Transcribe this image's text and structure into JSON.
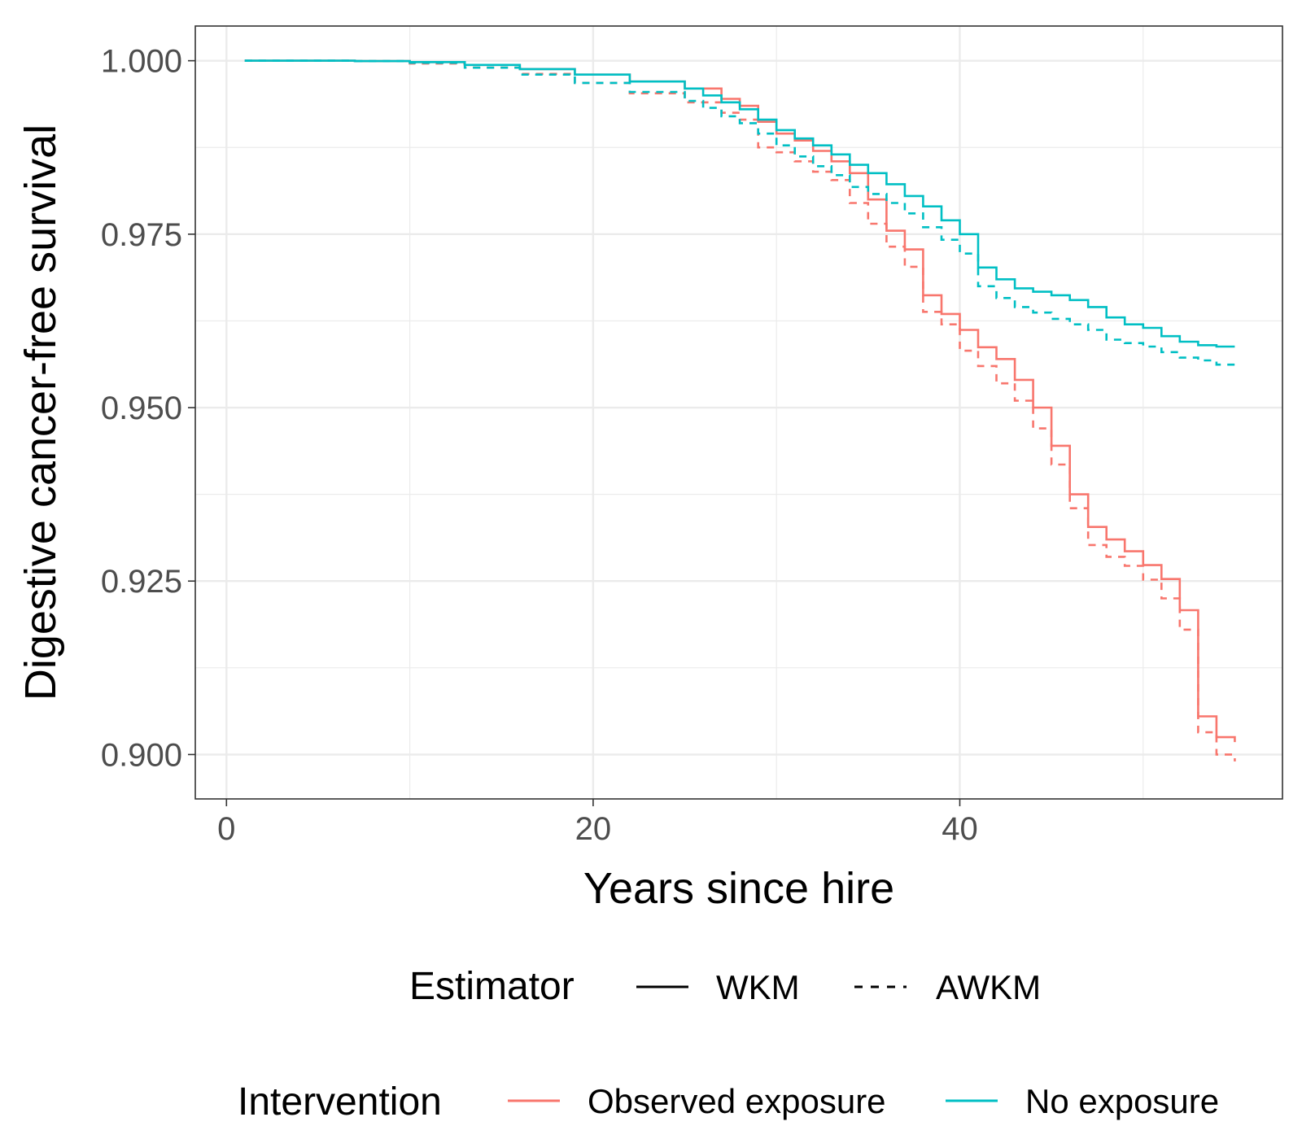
{
  "chart_data": {
    "type": "line",
    "step": true,
    "xlabel": "Years since hire",
    "ylabel": "Digestive cancer-free survival",
    "xlim": [
      -1.7,
      57.6
    ],
    "ylim": [
      0.8936,
      1.005
    ],
    "xticks": [
      0,
      20,
      40
    ],
    "xtick_labels": [
      "0",
      "20",
      "40"
    ],
    "yticks": [
      0.9,
      0.925,
      0.95,
      0.975,
      1.0
    ],
    "ytick_labels": [
      "0.900",
      "0.925",
      "0.950",
      "0.975",
      "1.000"
    ],
    "grid": true,
    "theme": "bw",
    "legend": {
      "position": "bottom",
      "estimator": {
        "title": "Estimator",
        "items": [
          {
            "label": "WKM",
            "linetype": "solid"
          },
          {
            "label": "AWKM",
            "linetype": "dashed"
          }
        ]
      },
      "intervention": {
        "title": "Intervention",
        "items": [
          {
            "label": "Observed exposure",
            "color": "#F8766D"
          },
          {
            "label": "No exposure",
            "color": "#00BFC4"
          }
        ]
      }
    },
    "series": [
      {
        "intervention": "Observed exposure",
        "estimator": "WKM",
        "color": "#F8766D",
        "linetype": "solid",
        "x": [
          1,
          7,
          10,
          13,
          16,
          19,
          22,
          25,
          27,
          28,
          29,
          30,
          31,
          32,
          33,
          34,
          35,
          36,
          37,
          38,
          39,
          40,
          41,
          42,
          43,
          44,
          45,
          46,
          47,
          48,
          49,
          50,
          51,
          52,
          53,
          54,
          55
        ],
        "y": [
          1.0,
          0.99995,
          0.9998,
          0.9994,
          0.9988,
          0.998,
          0.997,
          0.996,
          0.9945,
          0.9935,
          0.9912,
          0.9895,
          0.9885,
          0.987,
          0.9855,
          0.9838,
          0.98,
          0.9755,
          0.9728,
          0.9662,
          0.9635,
          0.9612,
          0.9587,
          0.957,
          0.954,
          0.95,
          0.9445,
          0.9375,
          0.9328,
          0.931,
          0.9293,
          0.9273,
          0.9253,
          0.9208,
          0.9055,
          0.9025,
          0.9018
        ]
      },
      {
        "intervention": "Observed exposure",
        "estimator": "AWKM",
        "color": "#F8766D",
        "linetype": "dashed",
        "x": [
          1,
          7,
          10,
          13,
          16,
          19,
          22,
          25,
          27,
          28,
          29,
          30,
          31,
          32,
          33,
          34,
          35,
          36,
          37,
          38,
          39,
          40,
          41,
          42,
          43,
          44,
          45,
          46,
          47,
          48,
          49,
          50,
          51,
          52,
          53,
          54,
          55
        ],
        "y": [
          1.0,
          0.99995,
          0.9996,
          0.999,
          0.9981,
          0.9968,
          0.9953,
          0.994,
          0.9925,
          0.9915,
          0.9875,
          0.9868,
          0.9855,
          0.984,
          0.9828,
          0.9795,
          0.9765,
          0.9732,
          0.9703,
          0.9638,
          0.962,
          0.9582,
          0.956,
          0.9535,
          0.951,
          0.947,
          0.9418,
          0.9355,
          0.9302,
          0.9285,
          0.9272,
          0.9252,
          0.9225,
          0.918,
          0.9032,
          0.9,
          0.899
        ]
      },
      {
        "intervention": "No exposure",
        "estimator": "WKM",
        "color": "#00BFC4",
        "linetype": "solid",
        "x": [
          1,
          7,
          10,
          13,
          16,
          19,
          22,
          25,
          26,
          27,
          28,
          29,
          30,
          31,
          32,
          33,
          34,
          35,
          36,
          37,
          38,
          39,
          40,
          41,
          42,
          43,
          44,
          45,
          46,
          47,
          48,
          49,
          50,
          51,
          52,
          53,
          54,
          55
        ],
        "y": [
          1.0,
          0.99995,
          0.9998,
          0.9994,
          0.9988,
          0.998,
          0.997,
          0.996,
          0.995,
          0.994,
          0.993,
          0.9915,
          0.99,
          0.9888,
          0.9878,
          0.9865,
          0.985,
          0.9838,
          0.9822,
          0.9805,
          0.979,
          0.977,
          0.975,
          0.9702,
          0.9685,
          0.9672,
          0.9667,
          0.9662,
          0.9655,
          0.9645,
          0.963,
          0.962,
          0.9615,
          0.9603,
          0.9595,
          0.959,
          0.9588,
          0.9588
        ]
      },
      {
        "intervention": "No exposure",
        "estimator": "AWKM",
        "color": "#00BFC4",
        "linetype": "dashed",
        "x": [
          1,
          7,
          10,
          13,
          16,
          19,
          22,
          25,
          26,
          27,
          28,
          29,
          30,
          31,
          32,
          33,
          34,
          35,
          36,
          37,
          38,
          39,
          40,
          41,
          42,
          43,
          44,
          45,
          46,
          47,
          48,
          49,
          50,
          51,
          52,
          53,
          54,
          55
        ],
        "y": [
          1.0,
          0.99995,
          0.9997,
          0.999,
          0.998,
          0.9968,
          0.9955,
          0.9942,
          0.9932,
          0.992,
          0.991,
          0.9895,
          0.9878,
          0.9862,
          0.9848,
          0.9835,
          0.9818,
          0.9808,
          0.9795,
          0.978,
          0.976,
          0.9742,
          0.9722,
          0.9675,
          0.9658,
          0.9645,
          0.9637,
          0.9628,
          0.962,
          0.9612,
          0.9598,
          0.9593,
          0.9588,
          0.958,
          0.9572,
          0.9568,
          0.9562,
          0.956
        ]
      }
    ]
  }
}
